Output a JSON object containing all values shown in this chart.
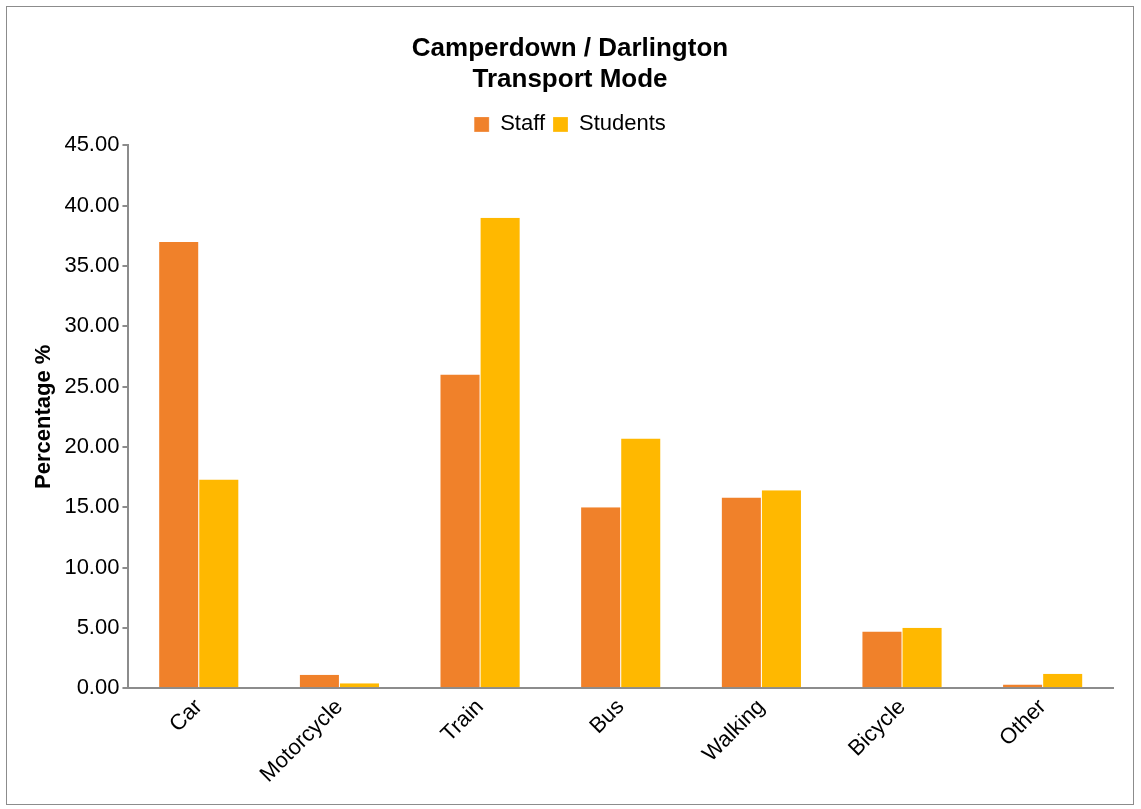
{
  "chart_data": {
    "type": "bar",
    "title": "Camperdown / Darlington\nTransport Mode",
    "ylabel": "Percentage %",
    "categories": [
      "Car",
      "Motorcycle",
      "Train",
      "Bus",
      "Walking",
      "Bicycle",
      "Other"
    ],
    "series": [
      {
        "name": "Staff",
        "color": "#f0812a",
        "values": [
          37.0,
          1.1,
          26.0,
          15.0,
          15.8,
          4.7,
          0.3
        ]
      },
      {
        "name": "Students",
        "color": "#ffb800",
        "values": [
          17.3,
          0.4,
          39.0,
          20.7,
          16.4,
          5.0,
          1.2
        ]
      }
    ],
    "ylim": [
      0,
      45
    ],
    "yticks": [
      {
        "value": 0,
        "label": "0.00"
      },
      {
        "value": 5,
        "label": "5.00"
      },
      {
        "value": 10,
        "label": "10.00"
      },
      {
        "value": 15,
        "label": "15.00"
      },
      {
        "value": 20,
        "label": "20.00"
      },
      {
        "value": 25,
        "label": "25.00"
      },
      {
        "value": 30,
        "label": "30.00"
      },
      {
        "value": 35,
        "label": "35.00"
      },
      {
        "value": 40,
        "label": "40.00"
      },
      {
        "value": 45,
        "label": "45.00"
      }
    ],
    "grid": false,
    "legend": "top"
  }
}
